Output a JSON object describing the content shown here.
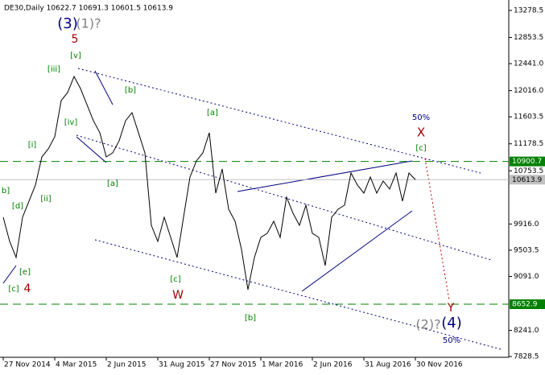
{
  "chart_data": {
    "type": "line",
    "header": "DE30,Daily  10622.7 10691.3 10601.5 10613.9",
    "series": [
      {
        "name": "DE30",
        "color": "#000000",
        "values": [
          10022,
          9642,
          9389,
          10022,
          10276,
          10529,
          10972,
          11099,
          11289,
          11859,
          11986,
          12239,
          12049,
          11796,
          11543,
          11353,
          10972,
          11036,
          11226,
          11543,
          11669,
          11353,
          11036,
          9895,
          9642,
          10022,
          9705,
          9389,
          10022,
          10656,
          10909,
          11036,
          11353,
          10402,
          10782,
          10149,
          9959,
          9515,
          8882,
          9389,
          9705,
          9769,
          9959,
          9705,
          10339,
          10085,
          9895,
          10212,
          9769,
          9705,
          9262,
          10022,
          10149,
          10212,
          10719,
          10529,
          10402,
          10656,
          10402,
          10592,
          10466,
          10719,
          10276,
          10719,
          10613.9
        ]
      }
    ],
    "xlim": [
      -0.5,
      78.5
    ],
    "xticks": [
      {
        "value": 0,
        "label": "27 Nov 2014"
      },
      {
        "value": 8,
        "label": "4 Mar 2015"
      },
      {
        "value": 16,
        "label": "2 Jun 2015"
      },
      {
        "value": 24,
        "label": "31 Aug 2015"
      },
      {
        "value": 32,
        "label": "27 Nov 2015"
      },
      {
        "value": 40,
        "label": "1 Mar 2016"
      },
      {
        "value": 48,
        "label": "2 Jun 2016"
      },
      {
        "value": 56,
        "label": "31 Aug 2016"
      },
      {
        "value": 64,
        "label": "30 Nov 2016"
      }
    ],
    "ylim": [
      7817,
      13443
    ],
    "yticks": [
      13278.5,
      12853.5,
      {
        "value": 12441.0,
        "label": "12441.0"
      },
      {
        "value": 12016.0,
        "label": "12016.0"
      },
      11603.5,
      11178.5,
      10753.5,
      {
        "value": 9916.0,
        "label": "9916.0"
      },
      9503.5,
      {
        "value": 9091.0,
        "label": "9091.0"
      },
      {
        "value": 8241.0,
        "label": "8241.0"
      },
      7828.5
    ],
    "levels": [
      {
        "value": 10900.7,
        "color": "#008000"
      },
      {
        "value": 8652.9,
        "color": "#008000"
      }
    ],
    "last_price": {
      "value": 10613.9,
      "color": "#c0c0c0"
    },
    "annotations": [
      {
        "text": "(3)",
        "color": "#000080"
      },
      {
        "text": "(1)?",
        "color": "#808080"
      },
      {
        "text": "5",
        "color": "#a00000"
      },
      {
        "text": "[v]",
        "color": "#008000"
      },
      {
        "text": "[iii]",
        "color": "#008000"
      },
      {
        "text": "[b]",
        "color": "#008000"
      },
      {
        "text": "[iv]",
        "color": "#008000"
      },
      {
        "text": "[i]",
        "color": "#008000"
      },
      {
        "text": "[a]",
        "color": "#008000"
      },
      {
        "text": "[a]",
        "color": "#008000"
      },
      {
        "text": "b]",
        "color": "#008000"
      },
      {
        "text": "[d]",
        "color": "#008000"
      },
      {
        "text": "[ii]",
        "color": "#008000"
      },
      {
        "text": "[e]",
        "color": "#008000"
      },
      {
        "text": "[c]",
        "color": "#008000"
      },
      {
        "text": "4",
        "color": "#a00000"
      },
      {
        "text": "[c]",
        "color": "#008000"
      },
      {
        "text": "W",
        "color": "#a00000"
      },
      {
        "text": "[b]",
        "color": "#008000"
      },
      {
        "text": "50%",
        "color": "#000080"
      },
      {
        "text": "X",
        "color": "#a00000"
      },
      {
        "text": "[c]",
        "color": "#008000"
      },
      {
        "text": "Y",
        "color": "#a00000"
      },
      {
        "text": "(2)?",
        "color": "#808080"
      },
      {
        "text": "(4)",
        "color": "#000080"
      },
      {
        "text": "50%",
        "color": "#000080"
      }
    ]
  }
}
